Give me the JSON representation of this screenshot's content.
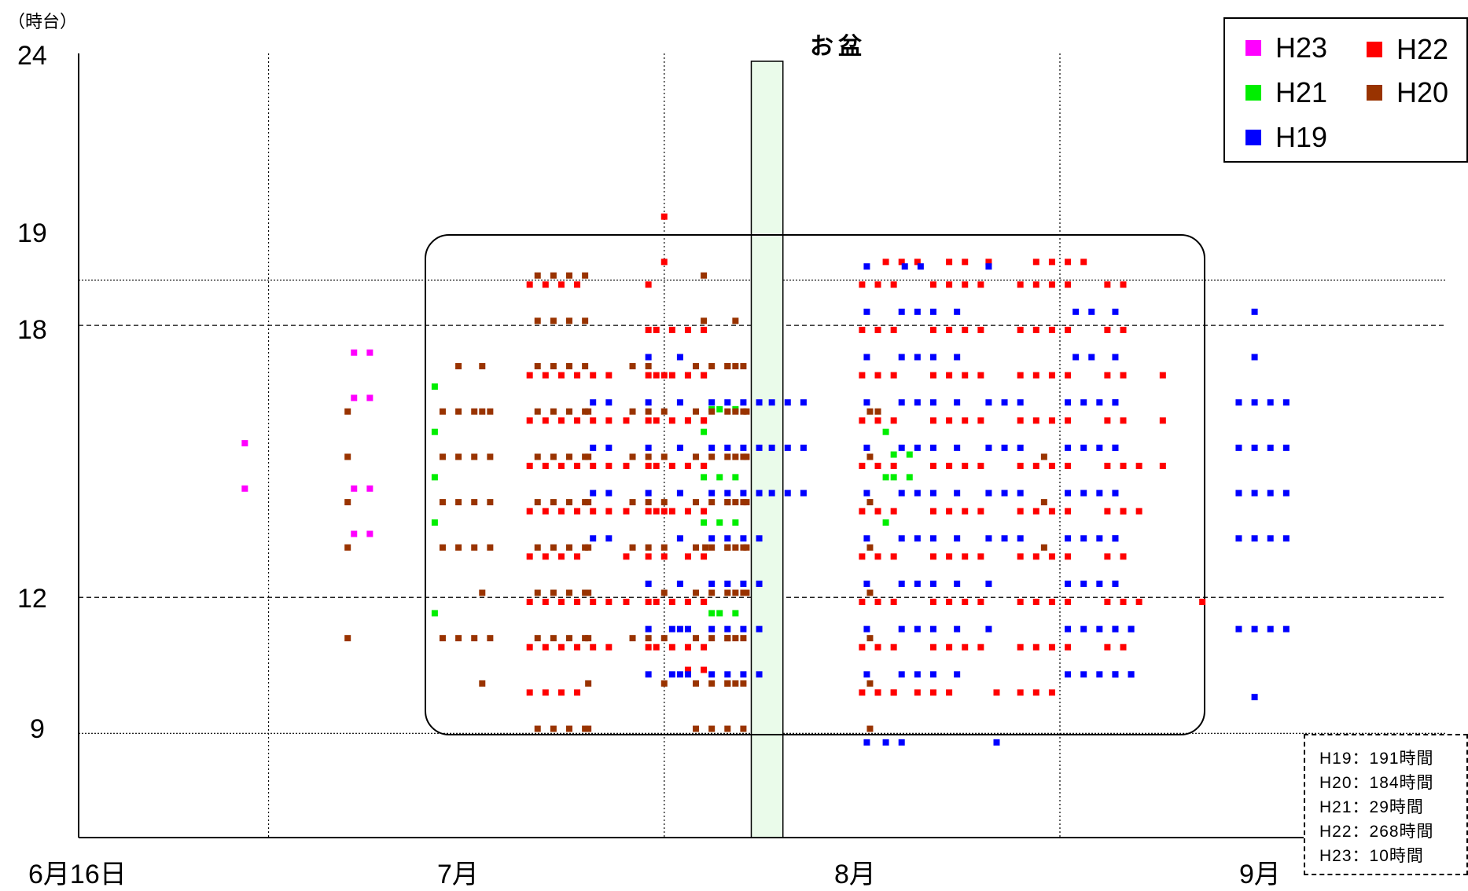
{
  "chart_data": {
    "type": "scatter",
    "unit_label": "（時台）",
    "obon_label": "お盆",
    "y_ticks": [
      "24",
      "19",
      "18",
      "12",
      "9"
    ],
    "x_ticks": [
      "6月16日",
      "7月",
      "8月",
      "9月"
    ],
    "ylim": [
      6.7,
      24
    ],
    "xlim_days_from_jun16": [
      0,
      77.5
    ],
    "highlight_band_days": [
      42.5,
      44.5
    ],
    "gridlines_y": [
      {
        "hour": 19,
        "style": "dotted"
      },
      {
        "hour": 18,
        "style": "dashed"
      },
      {
        "hour": 12,
        "style": "dashed"
      },
      {
        "hour": 9,
        "style": "dotted"
      }
    ],
    "gridlines_x_days": [
      12,
      37,
      62
    ],
    "colors": {
      "H23": "#ff00ff",
      "H22": "#ff0000",
      "H21": "#00ee00",
      "H20": "#993300",
      "H19": "#0000ff"
    },
    "legend": [
      {
        "name": "H23",
        "color": "#ff00ff"
      },
      {
        "name": "H22",
        "color": "#ff0000"
      },
      {
        "name": "H21",
        "color": "#00ee00"
      },
      {
        "name": "H20",
        "color": "#993300"
      },
      {
        "name": "H19",
        "color": "#0000ff"
      }
    ],
    "totals": [
      "H19：191時間",
      "H20：184時間",
      "H21：29時間",
      "H22：268時間",
      "H23：10時間"
    ],
    "series": [
      {
        "name": "H23",
        "color": "#ff00ff",
        "offset": -0.1,
        "runs": [
          [
            10.5,
            [
              14.5,
              15.5
            ],
            1
          ],
          [
            17.4,
            [
              16.5,
              17.5,
              13.5,
              14.5
            ],
            2
          ]
        ]
      },
      {
        "name": "H22",
        "color": "#ff0000",
        "offset": 0.4,
        "runs": [
          [
            28.5,
            [
              9.5,
              10.5,
              11.5,
              12.5,
              13.5,
              14.5,
              15.5,
              16.5,
              18.5
            ],
            4
          ],
          [
            32.5,
            [
              16.5,
              15.5,
              14.5,
              13.5,
              11.5,
              10.5
            ],
            2
          ],
          [
            34.6,
            [
              15.5,
              14.5,
              13.5,
              12.5,
              11.5
            ],
            1
          ],
          [
            36.0,
            [
              16.5,
              15.5,
              14.5,
              13.5,
              12.5,
              11.5,
              10.5,
              17.5,
              18.5
            ],
            1
          ],
          [
            36.5,
            [
              16.5,
              15.5,
              14.5,
              13.5,
              11.5,
              10.5,
              17.5
            ],
            4
          ],
          [
            37.0,
            [
              12.5,
              13.5,
              16.5,
              19.0,
              20.0
            ],
            1
          ],
          [
            38.5,
            [
              10.0,
              16.5,
              15.5,
              14.5,
              12.5,
              11.5
            ],
            2
          ],
          [
            49.5,
            [
              9.5,
              10.5,
              11.5,
              12.5,
              13.5,
              14.5,
              15.5,
              16.5,
              17.5,
              18.5
            ],
            3
          ],
          [
            51.0,
            [
              19.0
            ],
            3
          ],
          [
            50.5,
            [
              9.5
            ],
            2
          ],
          [
            54.0,
            [
              10.5,
              11.5,
              12.5,
              13.5,
              14.5,
              15.5,
              16.5,
              17.5,
              18.5
            ],
            4
          ],
          [
            53.0,
            [
              9.5
            ],
            3
          ],
          [
            55.0,
            [
              19.0
            ],
            2
          ],
          [
            58.0,
            [
              9.5
            ],
            1
          ],
          [
            57.5,
            [
              19.0
            ],
            1
          ],
          [
            59.5,
            [
              9.5
            ],
            3
          ],
          [
            59.5,
            [
              10.5,
              11.5,
              12.5,
              13.5,
              14.5,
              15.5,
              16.5,
              17.5,
              18.5
            ],
            4
          ],
          [
            60.5,
            [
              19.0
            ],
            4
          ],
          [
            65.0,
            [
              10.5,
              11.5,
              12.5,
              13.5,
              14.5,
              15.5,
              16.5,
              17.5,
              18.5
            ],
            2
          ],
          [
            66.0,
            [
              11.5,
              13.5,
              14.5
            ],
            2
          ],
          [
            68.5,
            [
              14.5,
              15.5,
              16.5
            ],
            1
          ],
          [
            71.0,
            [
              11.5
            ],
            1
          ]
        ]
      },
      {
        "name": "H21",
        "color": "#00ee00",
        "offset": 0.15,
        "runs": [
          [
            22.5,
            [
              11.5,
              13.5,
              14.5,
              15.5,
              16.5
            ],
            1
          ],
          [
            39.5,
            [
              13.5,
              14.5,
              15.5
            ],
            1
          ],
          [
            40.0,
            [
              16.0,
              11.5
            ],
            1
          ],
          [
            40.5,
            [
              14.5,
              13.5,
              11.5,
              16.0
            ],
            2
          ],
          [
            51.0,
            [
              13.5,
              14.5,
              15.5
            ],
            1
          ],
          [
            51.5,
            [
              14.5,
              15.0
            ],
            2
          ]
        ]
      },
      {
        "name": "H20",
        "color": "#993300",
        "offset": 0.1,
        "runs": [
          [
            17.0,
            [
              11.0,
              13.0,
              14.0,
              15.0,
              16.0
            ],
            1
          ],
          [
            23.0,
            [
              16.0,
              15.0,
              14.0,
              13.0,
              11.0
            ],
            4
          ],
          [
            24.0,
            [
              17.0
            ],
            1
          ],
          [
            25.5,
            [
              17.0,
              16.0,
              12.0,
              10.0
            ],
            1
          ],
          [
            29.0,
            [
              9.0,
              11.0,
              12.0,
              13.0,
              14.0,
              15.0,
              16.0,
              17.0,
              18.0,
              19.0
            ],
            4
          ],
          [
            32.2,
            [
              9.0,
              10.0,
              11.0,
              12.0,
              13.0,
              14.0,
              15.0,
              16.0
            ],
            1
          ],
          [
            35.0,
            [
              17.0,
              16.0,
              15.0,
              14.0,
              13.0,
              11.0
            ],
            2
          ],
          [
            37.0,
            [
              16.0,
              15.0,
              14.0,
              13.0,
              12.0,
              11.0,
              10.0
            ],
            1
          ],
          [
            39.0,
            [
              9.0,
              17.0,
              16.0,
              15.0,
              14.0,
              13.0,
              12.0,
              11.0,
              10.0
            ],
            4
          ],
          [
            39.5,
            [
              18.0,
              19.0
            ],
            1
          ],
          [
            41.5,
            [
              18.0,
              17.0,
              16.0,
              15.0,
              14.0,
              13.0,
              12.0,
              11.0,
              10.0
            ],
            1
          ],
          [
            39.6,
            [
              13.0
            ],
            1
          ],
          [
            41.0,
            [
              10.0,
              11.0,
              13.0,
              14.0,
              17.0
            ],
            1
          ],
          [
            42.2,
            [
              13.0,
              14.0,
              15.0,
              16.0,
              12.0
            ],
            1
          ],
          [
            50.0,
            [
              12.0,
              11.0,
              10.0,
              9.0,
              13.0,
              14.0,
              15.0,
              16.0
            ],
            1
          ],
          [
            50.5,
            [
              16.0
            ],
            1
          ],
          [
            61.0,
            [
              13.0,
              14.0,
              15.0
            ],
            1
          ]
        ]
      },
      {
        "name": "H19",
        "color": "#0000ff",
        "offset": -0.2,
        "runs": [
          [
            32.5,
            [
              13.5,
              14.5,
              15.5,
              16.5
            ],
            2
          ],
          [
            36.0,
            [
              16.5,
              15.5,
              14.5,
              12.5,
              11.5,
              10.5,
              17.5
            ],
            1
          ],
          [
            37.5,
            [
              11.5,
              10.5
            ],
            2
          ],
          [
            38.0,
            [
              16.5,
              15.5,
              14.5,
              13.5,
              12.5,
              11.5,
              10.5,
              17.5
            ],
            1
          ],
          [
            40.0,
            [
              16.5,
              15.5,
              14.5,
              13.5,
              12.5,
              11.5,
              10.5
            ],
            4
          ],
          [
            43.8,
            [
              16.5,
              15.5,
              14.5
            ],
            3
          ],
          [
            49.8,
            [
              9.0,
              10.5,
              11.5,
              12.5,
              13.5,
              14.5,
              15.5,
              16.5,
              17.5,
              18.5,
              19.5
            ],
            1
          ],
          [
            51.0,
            [
              9.0
            ],
            2
          ],
          [
            52.0,
            [
              10.5,
              11.5,
              12.5,
              13.5,
              14.5,
              15.5,
              16.5,
              17.5,
              18.5
            ],
            3
          ],
          [
            52.2,
            [
              19.5
            ],
            2
          ],
          [
            55.5,
            [
              10.5,
              11.5,
              12.5,
              13.5,
              14.5,
              15.5,
              16.5,
              17.5,
              18.5
            ],
            1
          ],
          [
            57.5,
            [
              11.5,
              12.5
            ],
            1
          ],
          [
            57.5,
            [
              19.5
            ],
            1
          ],
          [
            58.0,
            [
              9.0
            ],
            1
          ],
          [
            57.5,
            [
              13.5,
              14.5,
              15.5,
              16.5
            ],
            3
          ],
          [
            62.5,
            [
              16.5,
              15.5,
              14.5,
              13.5,
              12.5
            ],
            4
          ],
          [
            62.5,
            [
              10.5,
              11.5
            ],
            5
          ],
          [
            63.0,
            [
              17.5,
              18.5
            ],
            2
          ],
          [
            65.5,
            [
              16.5,
              15.5,
              14.5,
              13.5,
              12.5,
              11.5,
              10.5,
              17.5,
              18.5
            ],
            1
          ],
          [
            66.5,
            [
              10.5,
              11.5
            ],
            1
          ],
          [
            73.3,
            [
              16.5,
              15.5,
              14.5,
              13.5,
              11.5
            ],
            4
          ],
          [
            74.3,
            [
              10.0,
              17.5,
              18.5
            ],
            1
          ]
        ]
      }
    ]
  }
}
